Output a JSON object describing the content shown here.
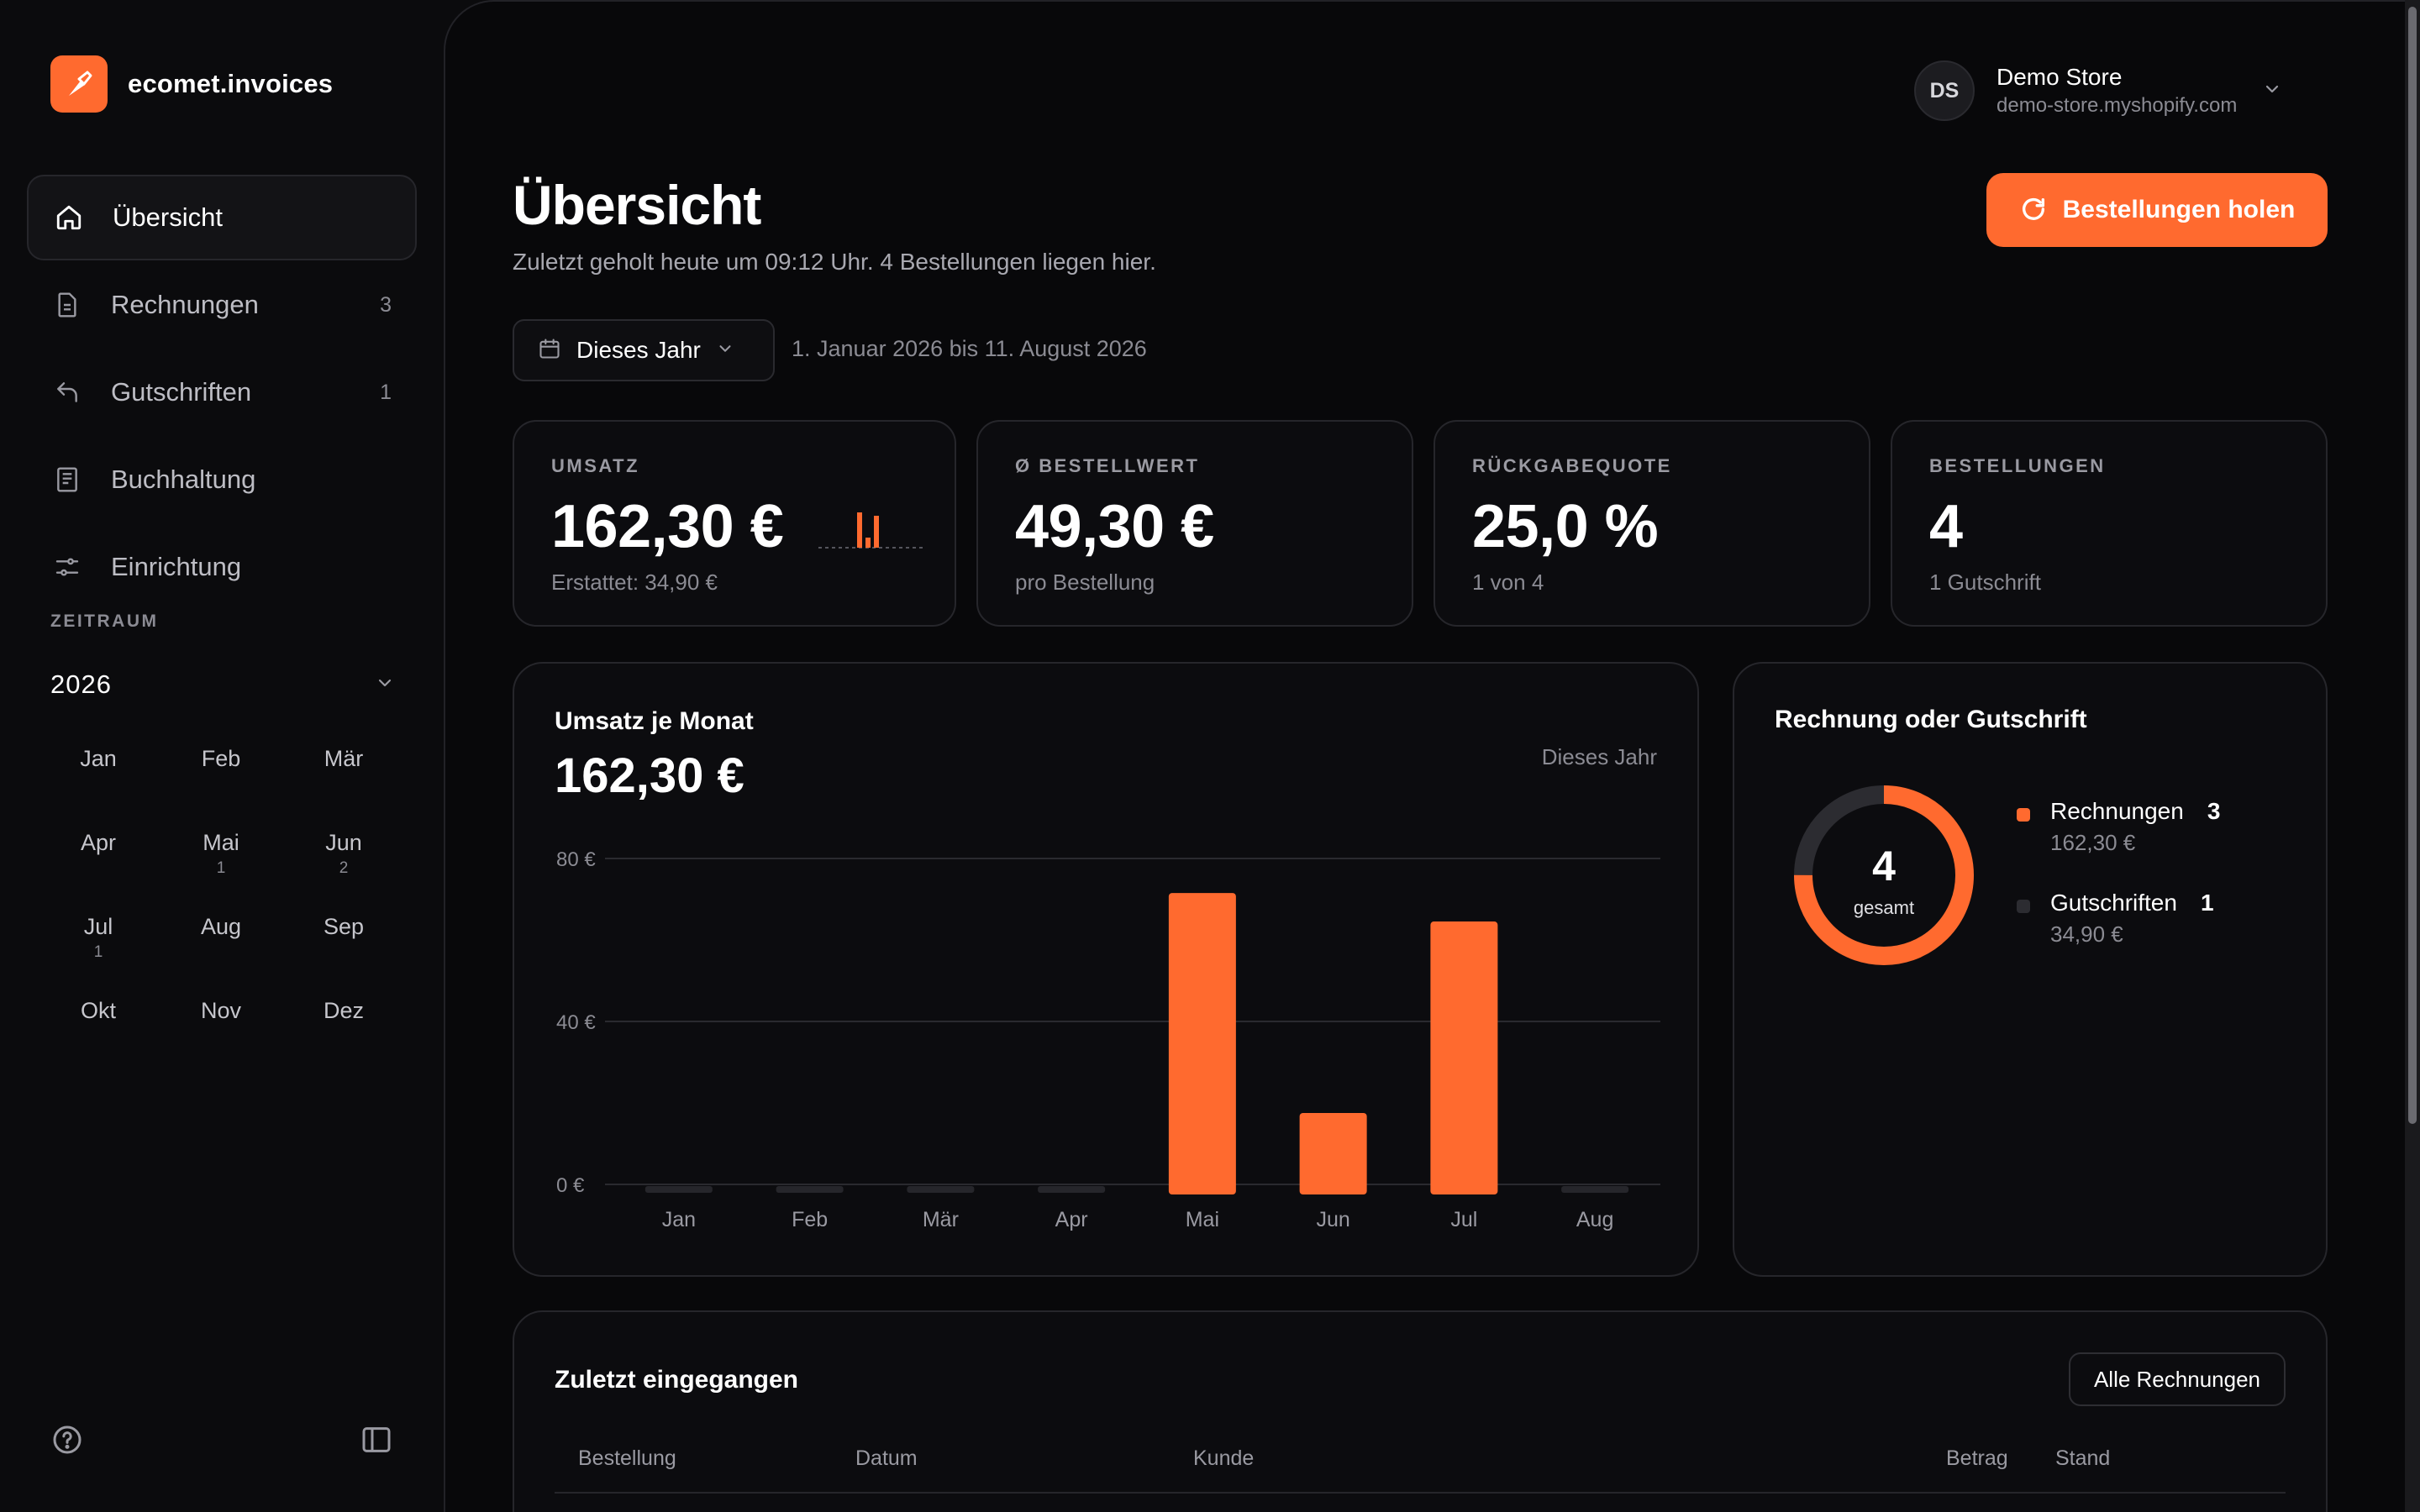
{
  "brand": {
    "name": "ecomet.invoices"
  },
  "nav": {
    "items": [
      {
        "label": "Übersicht",
        "count": ""
      },
      {
        "label": "Rechnungen",
        "count": "3"
      },
      {
        "label": "Gutschriften",
        "count": "1"
      },
      {
        "label": "Buchhaltung",
        "count": ""
      },
      {
        "label": "Einrichtung",
        "count": ""
      }
    ]
  },
  "period": {
    "section_label": "ZEITRAUM",
    "year": "2026",
    "months": [
      {
        "label": "Jan",
        "count": ""
      },
      {
        "label": "Feb",
        "count": ""
      },
      {
        "label": "Mär",
        "count": ""
      },
      {
        "label": "Apr",
        "count": ""
      },
      {
        "label": "Mai",
        "count": "1"
      },
      {
        "label": "Jun",
        "count": "2"
      },
      {
        "label": "Jul",
        "count": "1"
      },
      {
        "label": "Aug",
        "count": ""
      },
      {
        "label": "Sep",
        "count": ""
      },
      {
        "label": "Okt",
        "count": ""
      },
      {
        "label": "Nov",
        "count": ""
      },
      {
        "label": "Dez",
        "count": ""
      }
    ]
  },
  "store": {
    "initials": "DS",
    "name": "Demo Store",
    "domain": "demo-store.myshopify.com"
  },
  "header": {
    "title": "Übersicht",
    "subtitle": "Zuletzt geholt heute um 09:12 Uhr. 4 Bestellungen liegen hier.",
    "fetch_button": "Bestellungen holen",
    "range_button": "Dieses Jahr",
    "range_text": "1. Januar 2026 bis 11. August 2026"
  },
  "kpis": [
    {
      "label": "UMSATZ",
      "value": "162,30 €",
      "sub": "Erstattet: 34,90 €"
    },
    {
      "label": "Ø BESTELLWERT",
      "value": "49,30 €",
      "sub": "pro Bestellung"
    },
    {
      "label": "RÜCKGABEQUOTE",
      "value": "25,0 %",
      "sub": "1 von 4"
    },
    {
      "label": "BESTELLUNGEN",
      "value": "4",
      "sub": "1 Gutschrift"
    }
  ],
  "revenue_chart": {
    "title": "Umsatz je Monat",
    "total": "162,30 €",
    "period": "Dieses Jahr"
  },
  "chart_data": {
    "type": "bar",
    "categories": [
      "Jan",
      "Feb",
      "Mär",
      "Apr",
      "Mai",
      "Jun",
      "Jul",
      "Aug"
    ],
    "values": [
      0,
      0,
      0,
      0,
      74,
      20,
      67,
      0
    ],
    "y_ticks": [
      "80 €",
      "40 €",
      "0 €"
    ],
    "ylim": [
      0,
      80
    ],
    "grid": true,
    "color": "#ff6a2f"
  },
  "split": {
    "title": "Rechnung oder Gutschrift",
    "total": "4",
    "total_label": "gesamt",
    "items": [
      {
        "name": "Rechnungen",
        "count": "3",
        "amount": "162,30 €",
        "value": 3,
        "color": "#ff6a2f"
      },
      {
        "name": "Gutschriften",
        "count": "1",
        "amount": "34,90 €",
        "value": 1,
        "color": "#2c2c31"
      }
    ]
  },
  "recent": {
    "title": "Zuletzt eingegangen",
    "all_button": "Alle Rechnungen",
    "columns": [
      "Bestellung",
      "Datum",
      "Kunde",
      "Betrag",
      "Stand"
    ]
  },
  "colors": {
    "accent": "#ff6a2f",
    "background": "#08080a",
    "surface": "#0c0c0f",
    "border": "#26262b"
  }
}
